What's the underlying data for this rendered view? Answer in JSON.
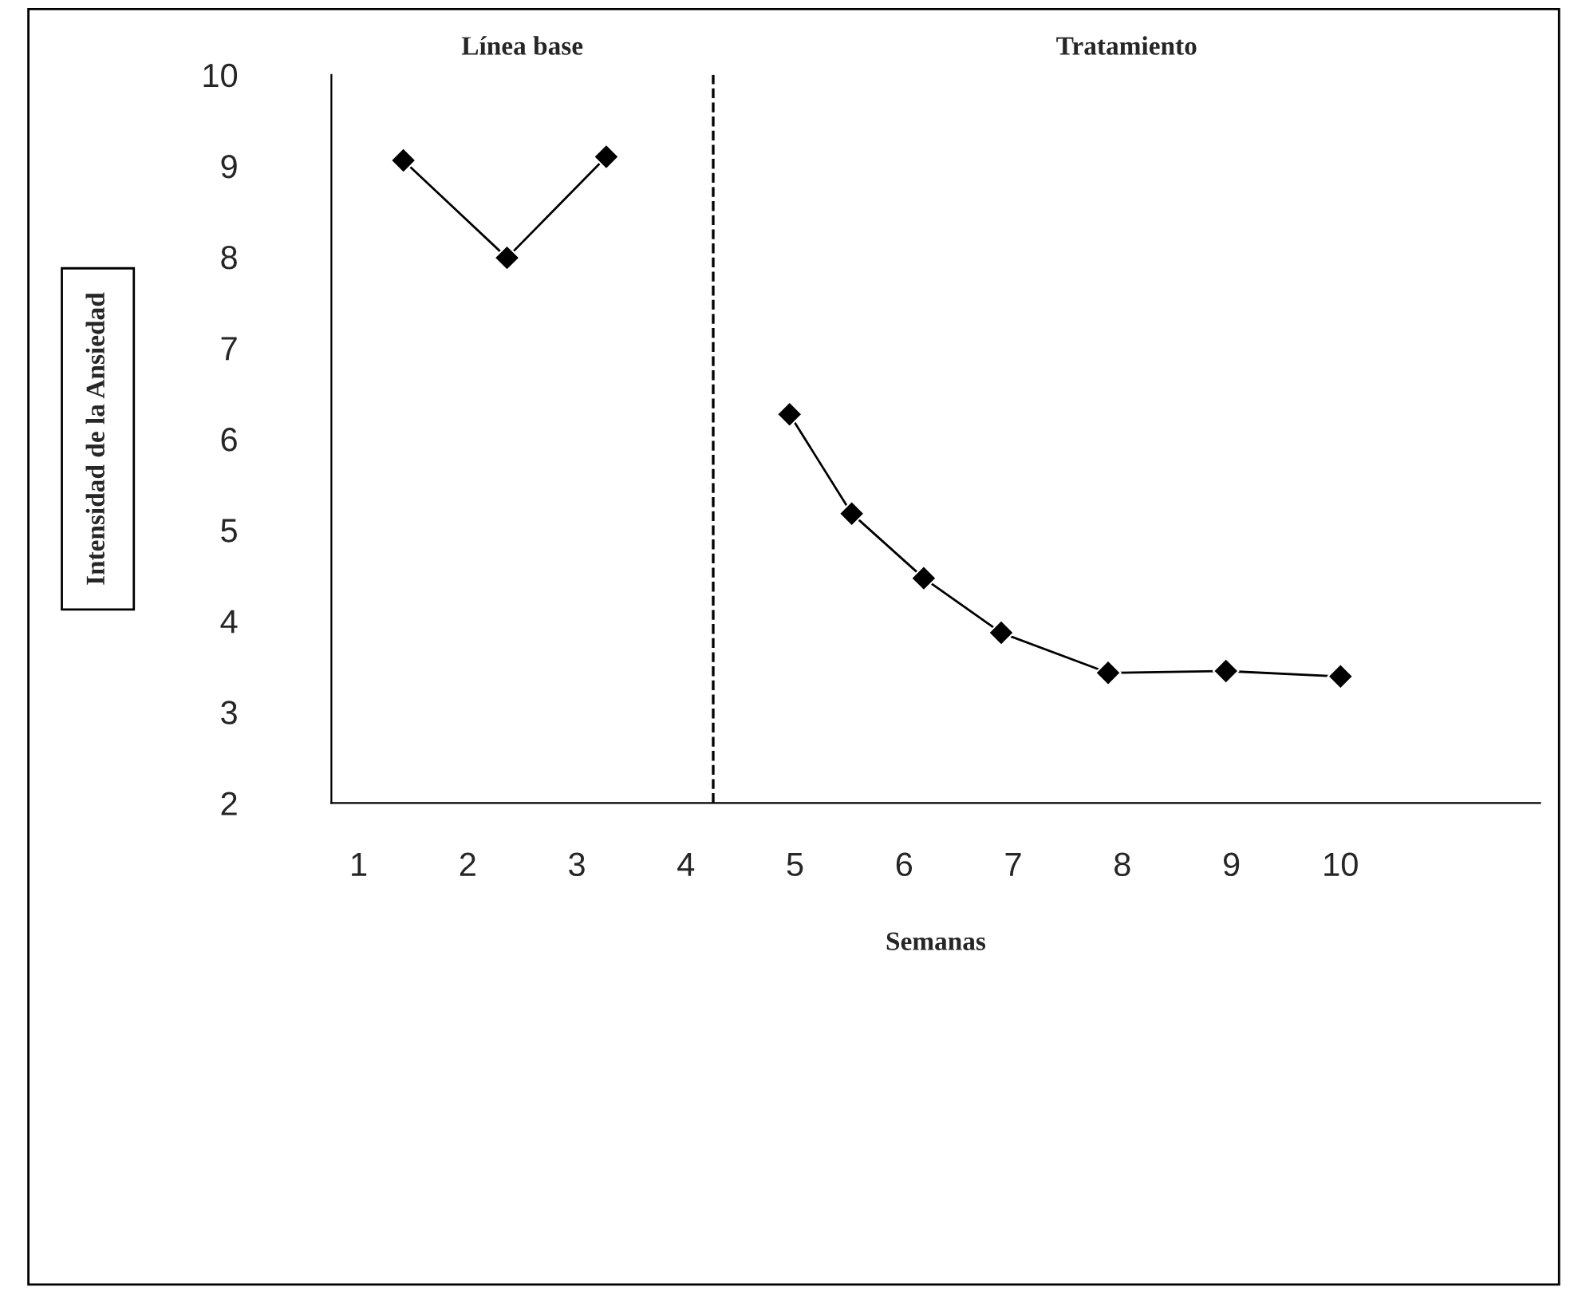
{
  "chart_data": {
    "type": "line",
    "xlabel": "Semanas",
    "ylabel": "Intensidad de la Ansiedad",
    "annotations": [
      "Línea base",
      "Tratamiento"
    ],
    "series": [
      {
        "color": "#000000",
        "x": [
          1.41,
          2.36,
          3.27
        ],
        "values": [
          9.06,
          7.99,
          9.1
        ]
      },
      {
        "color": "#000000",
        "x": [
          4.95,
          5.52,
          6.18,
          6.89,
          7.87,
          8.95,
          10.0
        ],
        "values": [
          6.27,
          5.18,
          4.47,
          3.87,
          3.43,
          3.45,
          3.39
        ]
      }
    ],
    "xlim": [
      0.75,
      11.83
    ],
    "xticks": [
      1,
      2,
      3,
      4,
      5,
      6,
      7,
      8,
      9,
      10
    ],
    "ylim": [
      2,
      10
    ],
    "yticks": [
      2,
      3,
      4,
      5,
      6,
      7,
      8,
      9,
      10
    ],
    "ref_lines": [
      {
        "axis": "x",
        "value": 4.25,
        "color": "#000000",
        "line_style": "dashed"
      }
    ],
    "marker": "diamond",
    "line_style": "solid",
    "grid": false,
    "legend": false
  }
}
